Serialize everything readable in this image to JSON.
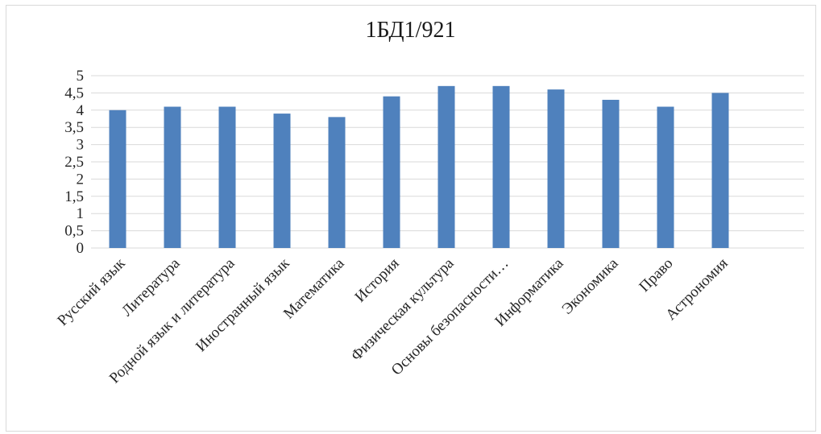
{
  "chart_data": {
    "type": "bar",
    "title": "1БД1/921",
    "categories": [
      "Русский язык",
      "Литература",
      "Родной язык и литература",
      "Иностранный язык",
      "Математика",
      "История",
      "Физическая культура",
      "Основы безопасности…",
      "Информатика",
      "Экономика",
      "Право",
      "Астрономия"
    ],
    "values": [
      4.0,
      4.1,
      4.1,
      3.9,
      3.8,
      4.4,
      4.7,
      4.7,
      4.6,
      4.3,
      4.1,
      4.5
    ],
    "y_ticks": [
      "0",
      "0,5",
      "1",
      "1,5",
      "2",
      "2,5",
      "3",
      "3,5",
      "4",
      "4,5",
      "5"
    ],
    "ylim": [
      0,
      5
    ],
    "grid": true,
    "legend": "none",
    "bar_color": "#4f81bd",
    "grid_color": "#d9d9d9"
  }
}
